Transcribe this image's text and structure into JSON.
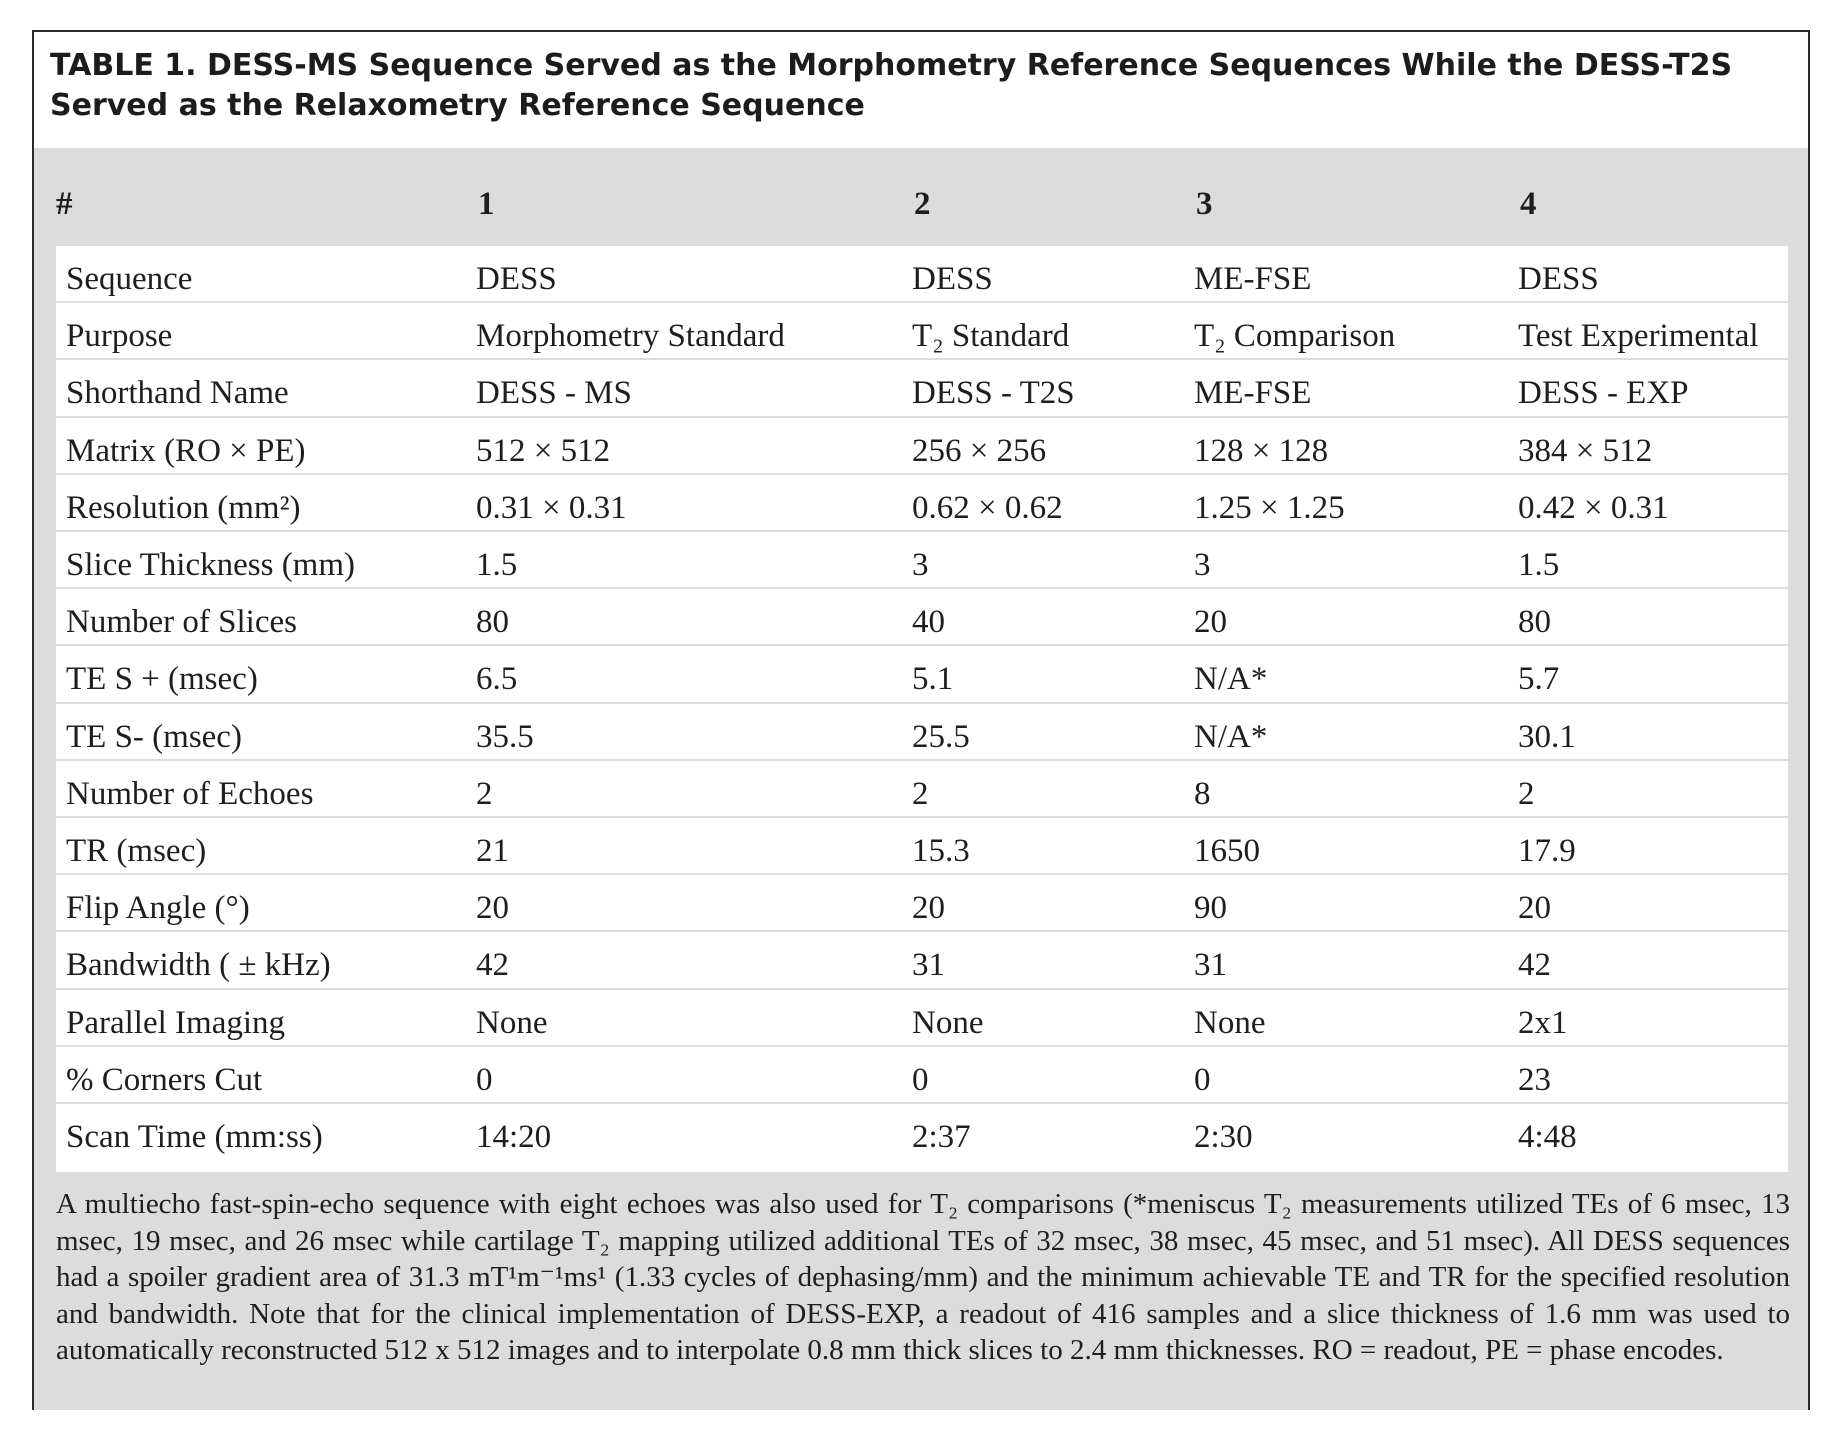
{
  "caption": "TABLE 1. DESS-MS Sequence Served as the Morphometry Reference Sequences While the DESS-T2S Served as the Relaxometry Reference Sequence",
  "header": [
    "#",
    "1",
    "2",
    "3",
    "4"
  ],
  "rows": [
    [
      "Sequence",
      "DESS",
      "DESS",
      "ME-FSE",
      "DESS"
    ],
    [
      "Purpose",
      "Morphometry Standard",
      "T₂ Standard",
      "T₂ Comparison",
      "Test Experimental"
    ],
    [
      "Shorthand Name",
      "DESS - MS",
      "DESS - T2S",
      "ME-FSE",
      "DESS - EXP"
    ],
    [
      "Matrix (RO × PE)",
      "512 × 512",
      "256 × 256",
      "128 × 128",
      "384 × 512"
    ],
    [
      "Resolution (mm²)",
      "0.31 × 0.31",
      "0.62 × 0.62",
      "1.25 × 1.25",
      "0.42 × 0.31"
    ],
    [
      "Slice Thickness (mm)",
      "1.5",
      "3",
      "3",
      "1.5"
    ],
    [
      "Number of Slices",
      "80",
      "40",
      "20",
      "80"
    ],
    [
      "TE S + (msec)",
      "6.5",
      "5.1",
      "N/A*",
      "5.7"
    ],
    [
      "TE S- (msec)",
      "35.5",
      "25.5",
      "N/A*",
      "30.1"
    ],
    [
      "Number of Echoes",
      "2",
      "2",
      "8",
      "2"
    ],
    [
      "TR (msec)",
      "21",
      "15.3",
      "1650",
      "17.9"
    ],
    [
      "Flip Angle (°)",
      "20",
      "20",
      "90",
      "20"
    ],
    [
      "Bandwidth ( ± kHz)",
      "42",
      "31",
      "31",
      "42"
    ],
    [
      "Parallel Imaging",
      "None",
      "None",
      "None",
      "2x1"
    ],
    [
      "% Corners Cut",
      "0",
      "0",
      "0",
      "23"
    ],
    [
      "Scan Time (mm:ss)",
      "14:20",
      "2:37",
      "2:30",
      "4:48"
    ]
  ],
  "footnote": "A multiecho fast-spin-echo sequence with eight echoes was also used for T₂ comparisons (*meniscus T₂ measurements utilized TEs of 6 msec, 13 msec, 19 msec, and 26 msec while cartilage T₂ mapping utilized additional TEs of 32 msec, 38 msec, 45 msec, and 51 msec). All DESS sequences had a spoiler gradient area of 31.3 mT¹m⁻¹ms¹ (1.33 cycles of dephasing/mm) and the minimum achievable TE and TR for the specified resolution and bandwidth. Note that for the clinical implementation of DESS-EXP, a readout of 416 samples and a slice thickness of 1.6 mm was used to automatically reconstructed 512 x 512 images and to interpolate 0.8 mm thick slices to 2.4 mm thicknesses. RO = readout, PE = phase encodes."
}
